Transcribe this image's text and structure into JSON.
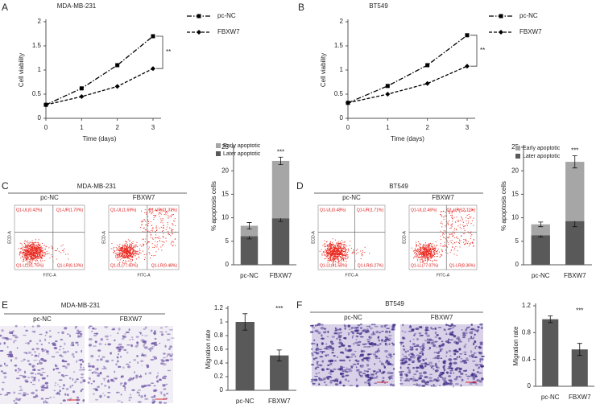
{
  "chart_data": [
    {
      "panel": "A",
      "type": "line",
      "title": "MDA-MB-231",
      "x": [
        0,
        1,
        2,
        3
      ],
      "xlim": [
        0,
        3
      ],
      "xticks": [
        0,
        1,
        2,
        3
      ],
      "ylim": [
        0,
        2
      ],
      "yticks": [
        0,
        0.5,
        1,
        1.5,
        2
      ],
      "xlabel": "Time (days)",
      "ylabel": "Cell viability",
      "series": [
        {
          "name": "pc-NC",
          "color": "#000000",
          "values": [
            0.28,
            0.62,
            1.1,
            1.7
          ],
          "errors": [
            0.02,
            0.03,
            0.04,
            0.04
          ]
        },
        {
          "name": "FBXW7",
          "color": "#000000",
          "values": [
            0.28,
            0.45,
            0.66,
            1.03
          ],
          "errors": [
            0.02,
            0.02,
            0.03,
            0.04
          ]
        }
      ],
      "annotation": "**"
    },
    {
      "panel": "B",
      "type": "line",
      "title": "BT549",
      "x": [
        0,
        1,
        2,
        3
      ],
      "xlim": [
        0,
        3
      ],
      "xticks": [
        0,
        1,
        2,
        3
      ],
      "ylim": [
        0,
        2
      ],
      "yticks": [
        0,
        0.5,
        1,
        1.5,
        2
      ],
      "xlabel": "Time (days)",
      "ylabel": "Cell viability",
      "series": [
        {
          "name": "pc-NC",
          "color": "#000000",
          "values": [
            0.32,
            0.67,
            1.1,
            1.72
          ],
          "errors": [
            0.02,
            0.02,
            0.03,
            0.03
          ]
        },
        {
          "name": "FBXW7",
          "color": "#000000",
          "values": [
            0.32,
            0.5,
            0.72,
            1.08
          ],
          "errors": [
            0.02,
            0.02,
            0.02,
            0.03
          ]
        }
      ],
      "annotation": "**"
    },
    {
      "panel": "C",
      "type": "bar",
      "stacked": true,
      "title": "MDA-MB-231",
      "flow": [
        {
          "label": "pc-NC",
          "quadrants": [
            "Q1-UL(0.42%)",
            "Q1-UR(1.70%)",
            "Q1-LL(91.75%)",
            "Q1-LR(6.13%)"
          ]
        },
        {
          "label": "FBXW7",
          "quadrants": [
            "Q1-UL(1.69%)",
            "Q1-UR(11.31%)",
            "Q1-LL(77.60%)",
            "Q1-LR(9.48%)"
          ]
        }
      ],
      "flow_xlabel": "FITC-A",
      "flow_ylabel": "ECD-A",
      "categories": [
        "pc-NC",
        "FBXW7"
      ],
      "ylabel": "% apoptosis cells",
      "ylim": [
        0,
        25
      ],
      "yticks": [
        0,
        5,
        10,
        15,
        20,
        25
      ],
      "series": [
        {
          "name": "Early apoptotic",
          "color": "#a6a6a6",
          "values": [
            2.2,
            12.2
          ],
          "errors": [
            0.7,
            0.8
          ]
        },
        {
          "name": "Later apoptotic",
          "color": "#595959",
          "values": [
            6.1,
            9.9
          ],
          "errors": [
            0.6,
            0.7
          ]
        }
      ],
      "annotation": "***"
    },
    {
      "panel": "D",
      "type": "bar",
      "stacked": true,
      "title": "BT549",
      "flow": [
        {
          "label": "pc-NC",
          "quadrants": [
            "Q1-UL(0.48%)",
            "Q1-UR(1.71%)",
            "Q1-LL(91.58%)",
            "Q1-LR(6.27%)"
          ]
        },
        {
          "label": "FBXW7",
          "quadrants": [
            "Q1-UL(2.46%)",
            "Q1-UR(12.11%)",
            "Q1-LL(77.07%)",
            "Q1-LR(8.36%)"
          ]
        }
      ],
      "flow_xlabel": "FITC-A",
      "flow_ylabel": "ECD-A",
      "categories": [
        "pc-NC",
        "FBXW7"
      ],
      "ylabel": "% apoptosis cells",
      "ylim": [
        0,
        25
      ],
      "yticks": [
        0,
        5,
        10,
        15,
        20,
        25
      ],
      "series": [
        {
          "name": "Early apoptotic",
          "color": "#a6a6a6",
          "values": [
            2.3,
            12.6
          ],
          "errors": [
            0.5,
            1.3
          ]
        },
        {
          "name": "Later apoptotic",
          "color": "#595959",
          "values": [
            6.3,
            9.3
          ],
          "errors": [
            0.4,
            1.2
          ]
        }
      ],
      "annotation": "***"
    },
    {
      "panel": "E",
      "type": "bar",
      "title": "MDA-MB-231",
      "images": [
        "pc-NC",
        "FBXW7"
      ],
      "categories": [
        "pc-NC",
        "FBXW7"
      ],
      "values": [
        1.0,
        0.51
      ],
      "errors": [
        0.12,
        0.08
      ],
      "color": "#595959",
      "ylabel": "Migration rate",
      "ylim": [
        0,
        1.2
      ],
      "yticks": [
        0,
        0.2,
        0.4,
        0.6,
        0.8,
        1,
        1.2
      ],
      "annotation": "***"
    },
    {
      "panel": "F",
      "type": "bar",
      "title": "BT549",
      "images": [
        "pc-NC",
        "FBXW7"
      ],
      "categories": [
        "pc-NC",
        "FBXW7"
      ],
      "values": [
        1.0,
        0.55
      ],
      "errors": [
        0.05,
        0.09
      ],
      "color": "#595959",
      "ylabel": "Migration rate",
      "ylim": [
        0,
        1.2
      ],
      "yticks": [
        0,
        0.4,
        0.8,
        1.2
      ],
      "annotation": "***"
    }
  ]
}
